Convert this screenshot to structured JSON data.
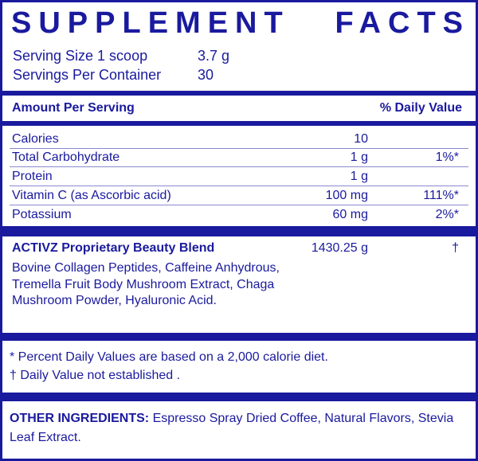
{
  "title": {
    "word1": "SUPPLEMENT",
    "word2": "FACTS"
  },
  "serving": {
    "size_label": "Serving Size 1 scoop",
    "size_value": "3.7 g",
    "per_container_label": "Servings Per Container",
    "per_container_value": "30"
  },
  "header": {
    "amount": "Amount Per Serving",
    "daily_value": "% Daily Value"
  },
  "nutrients": [
    {
      "name": "Calories",
      "amount": "10",
      "dv": ""
    },
    {
      "name": "Total Carbohydrate",
      "amount": "1 g",
      "dv": "1%*"
    },
    {
      "name": "Protein",
      "amount": "1 g",
      "dv": ""
    },
    {
      "name": "Vitamin C (as Ascorbic acid)",
      "amount": "100 mg",
      "dv": "111%*"
    },
    {
      "name": "Potassium",
      "amount": "60 mg",
      "dv": "2%*"
    }
  ],
  "blend": {
    "name": "ACTIVZ Proprietary Beauty Blend",
    "amount": "1430.25 g",
    "dv": "†",
    "ingredients": "Bovine Collagen Peptides, Caffeine Anhydrous, Tremella Fruit Body Mushroom Extract, Chaga Mushroom Powder, Hyaluronic Acid."
  },
  "footnotes": {
    "percent": "* Percent Daily Values are based on a 2,000 calorie diet.",
    "dagger": "† Daily Value not established ."
  },
  "other": {
    "label": "OTHER INGREDIENTS:",
    "text": " Espresso Spray Dried Coffee, Natural Flavors, Stevia Leaf Extract."
  },
  "colors": {
    "ink": "#1a1a9e",
    "background": "#ffffff"
  }
}
